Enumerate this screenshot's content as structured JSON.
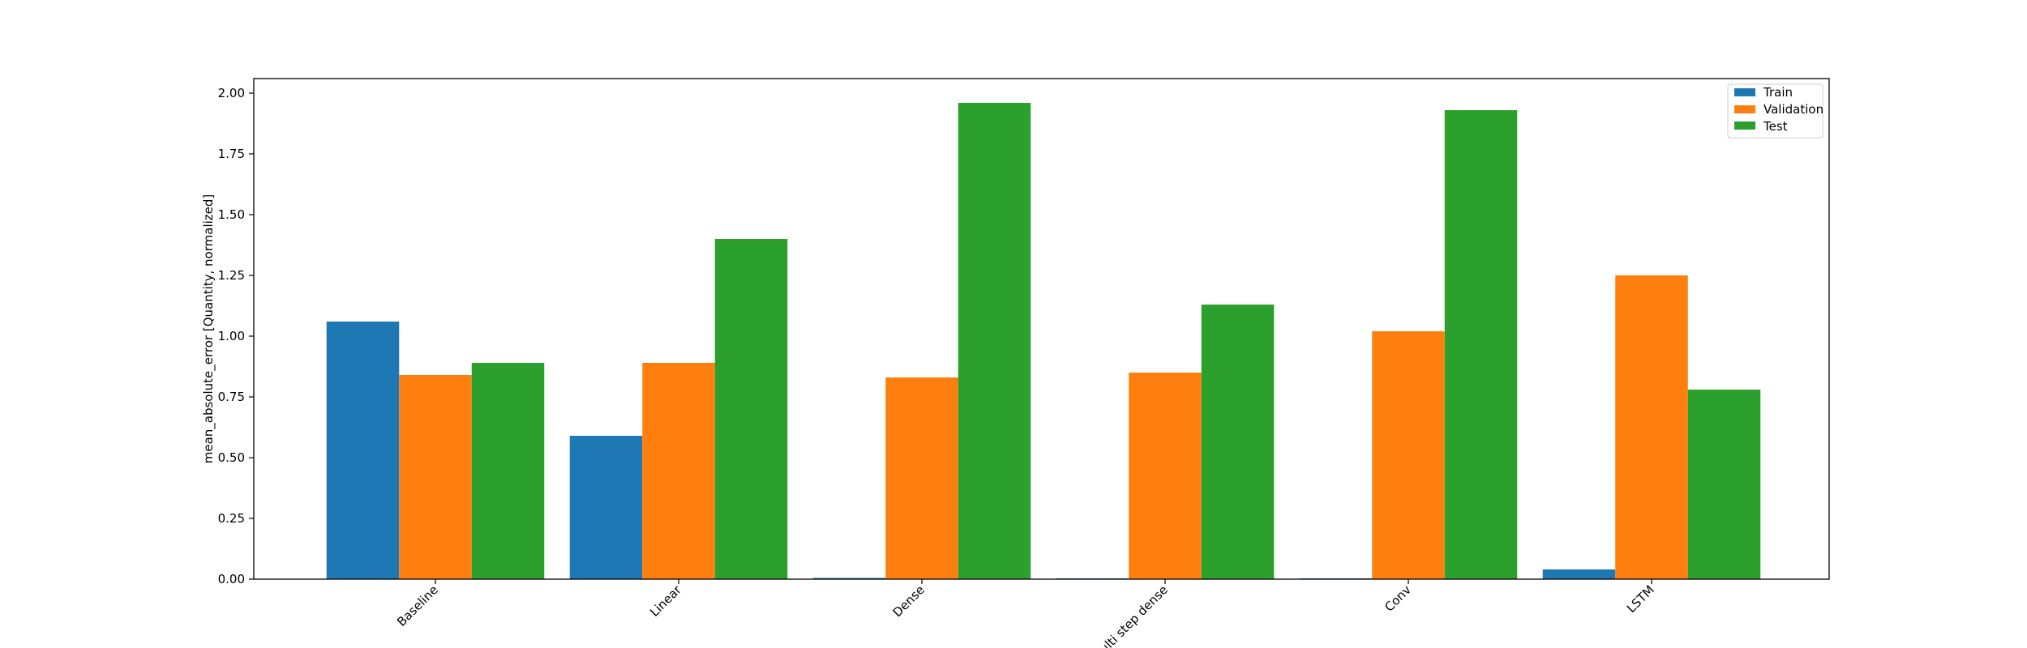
{
  "chart_data": {
    "type": "bar",
    "title": "",
    "xlabel": "",
    "ylabel": "mean_absolute_error [Quantity, normalized]",
    "categories": [
      "Baseline",
      "Linear",
      "Dense",
      "Multi step dense",
      "Conv",
      "LSTM"
    ],
    "series": [
      {
        "name": "Train",
        "color": "#1f77b4",
        "values": [
          1.06,
          0.59,
          0.005,
          0.003,
          0.003,
          0.04
        ]
      },
      {
        "name": "Validation",
        "color": "#ff7f0e",
        "values": [
          0.84,
          0.89,
          0.83,
          0.85,
          1.02,
          1.25
        ]
      },
      {
        "name": "Test",
        "color": "#2ca02c",
        "values": [
          0.89,
          1.4,
          1.96,
          1.13,
          1.93,
          0.78
        ]
      }
    ],
    "ylim": [
      0,
      2.06
    ],
    "yticks": [
      "0.00",
      "0.25",
      "0.50",
      "0.75",
      "1.00",
      "1.25",
      "1.50",
      "1.75",
      "2.00"
    ],
    "grid": false,
    "legend_position": "top-right",
    "xtick_rotation_deg": 45
  }
}
